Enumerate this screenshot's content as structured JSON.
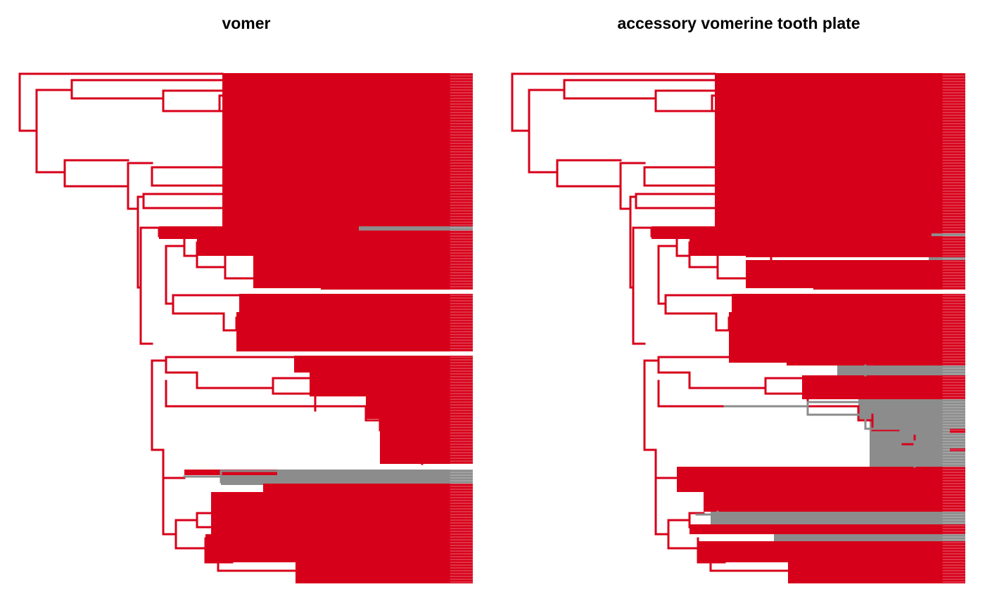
{
  "colors": {
    "present": "#d7001a",
    "absent": "#8c8c8c",
    "background": "#ffffff",
    "title": "#000000"
  },
  "panels": [
    {
      "title": "vomer"
    },
    {
      "title": "accessory vomerine tooth plate"
    }
  ]
}
